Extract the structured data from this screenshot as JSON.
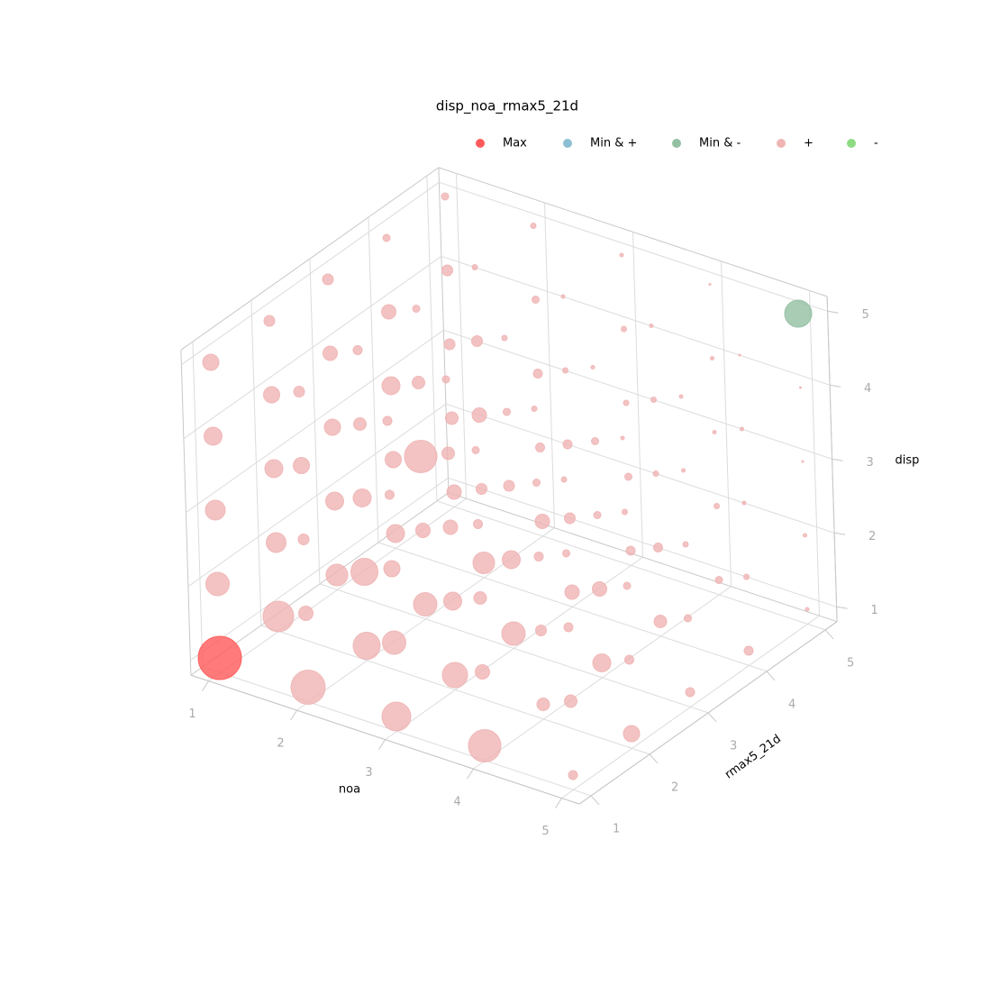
{
  "chart_data": {
    "type": "scatter3d",
    "title": "disp_noa_rmax5_21d",
    "xlabel": "noa",
    "ylabel": "rmax5_21d",
    "zlabel": "disp",
    "xlim": [
      0.8,
      5.2
    ],
    "ylim": [
      0.8,
      5.2
    ],
    "zlim": [
      0.8,
      5.2
    ],
    "xticks": [
      1,
      2,
      3,
      4,
      5
    ],
    "yticks": [
      1,
      2,
      3,
      4,
      5
    ],
    "zticks": [
      1,
      2,
      3,
      4,
      5
    ],
    "grid": true,
    "series": [
      {
        "name": "Max",
        "color": "#ff5a5a",
        "x": [
          1
        ],
        "y": [
          1
        ],
        "z": [
          1
        ],
        "sizes": [
          24
        ]
      },
      {
        "name": "Min & +",
        "color": "#8cbfd2",
        "x": [],
        "y": [],
        "z": [],
        "sizes": []
      },
      {
        "name": "Min & -",
        "color": "#93bfa3",
        "x": [
          5
        ],
        "y": [
          5
        ],
        "z": [
          5
        ],
        "sizes": [
          15
        ]
      },
      {
        "name": "+",
        "color": "#f0b4b4",
        "x": [
          1,
          1,
          1,
          1,
          2,
          2,
          2,
          2,
          2,
          3,
          3,
          3,
          3,
          3,
          4,
          4,
          4,
          4,
          4,
          5,
          5,
          5,
          5,
          5,
          1,
          1,
          1,
          1,
          1,
          2,
          2,
          2,
          2,
          2,
          3,
          3,
          3,
          3,
          3,
          4,
          4,
          4,
          4,
          4,
          5,
          5,
          5,
          5,
          5,
          1,
          1,
          1,
          1,
          1,
          2,
          2,
          2,
          2,
          2,
          3,
          3,
          3,
          3,
          3,
          4,
          4,
          4,
          4,
          4,
          5,
          5,
          5,
          5,
          5,
          1,
          1,
          1,
          1,
          1,
          2,
          2,
          2,
          2,
          2,
          3,
          3,
          3,
          3,
          3,
          4,
          4,
          4,
          4,
          4,
          5,
          5,
          5,
          5,
          5,
          1,
          1,
          1,
          1,
          1,
          2,
          2,
          2,
          2,
          2,
          3,
          3,
          3,
          3,
          3,
          4,
          4,
          4,
          4,
          4,
          5,
          5,
          5,
          5
        ],
        "y": [
          2,
          3,
          4,
          5,
          1,
          2,
          3,
          4,
          5,
          1,
          2,
          3,
          4,
          5,
          1,
          2,
          3,
          4,
          5,
          1,
          2,
          3,
          4,
          5,
          1,
          2,
          3,
          4,
          5,
          1,
          2,
          3,
          4,
          5,
          1,
          2,
          3,
          4,
          5,
          1,
          2,
          3,
          4,
          5,
          1,
          2,
          3,
          4,
          5,
          1,
          2,
          3,
          4,
          5,
          1,
          2,
          3,
          4,
          5,
          1,
          2,
          3,
          4,
          5,
          1,
          2,
          3,
          4,
          5,
          1,
          2,
          3,
          4,
          5,
          1,
          2,
          3,
          4,
          5,
          1,
          2,
          3,
          4,
          5,
          1,
          2,
          3,
          4,
          5,
          1,
          2,
          3,
          4,
          5,
          1,
          2,
          3,
          4,
          5,
          1,
          2,
          3,
          4,
          5,
          1,
          2,
          3,
          4,
          5,
          1,
          2,
          3,
          4,
          5,
          1,
          2,
          3,
          4,
          5,
          1,
          2,
          3,
          4
        ],
        "z": [
          1,
          1,
          1,
          1,
          1,
          1,
          1,
          1,
          1,
          1,
          1,
          1,
          1,
          1,
          1,
          1,
          1,
          1,
          1,
          1,
          1,
          1,
          1,
          1,
          2,
          2,
          2,
          2,
          2,
          2,
          2,
          2,
          2,
          2,
          2,
          2,
          2,
          2,
          2,
          2,
          2,
          2,
          2,
          2,
          2,
          2,
          2,
          2,
          2,
          3,
          3,
          3,
          3,
          3,
          3,
          3,
          3,
          3,
          3,
          3,
          3,
          3,
          3,
          3,
          3,
          3,
          3,
          3,
          3,
          3,
          3,
          3,
          3,
          3,
          4,
          4,
          4,
          4,
          4,
          4,
          4,
          4,
          4,
          4,
          4,
          4,
          4,
          4,
          4,
          4,
          4,
          4,
          4,
          4,
          4,
          4,
          4,
          4,
          4,
          5,
          5,
          5,
          5,
          5,
          5,
          5,
          5,
          5,
          5,
          5,
          5,
          5,
          5,
          5,
          5,
          5,
          5,
          5,
          5,
          5,
          5,
          5,
          5
        ],
        "sizes": [
          17,
          12,
          10,
          8,
          19,
          15,
          13,
          12,
          8,
          16,
          14,
          13,
          8,
          5,
          18,
          7,
          10,
          7,
          4,
          5,
          9,
          5,
          5,
          2,
          13,
          11,
          10,
          9,
          7,
          8,
          15,
          8,
          6,
          5,
          13,
          10,
          10,
          6,
          4,
          8,
          6,
          8,
          5,
          3,
          7,
          5,
          4,
          3,
          2,
          11,
          10,
          9,
          10,
          6,
          6,
          10,
          18,
          8,
          5,
          9,
          8,
          6,
          5,
          3,
          7,
          5,
          4,
          3,
          2,
          5,
          4,
          3,
          2,
          1,
          10,
          9,
          8,
          8,
          6,
          9,
          7,
          7,
          6,
          4,
          5,
          7,
          4,
          3,
          3,
          5,
          4,
          4,
          3,
          2,
          4,
          3,
          2,
          2,
          1,
          9,
          6,
          6,
          4,
          4,
          6,
          5,
          4,
          3,
          3,
          5,
          4,
          3,
          2,
          2,
          4,
          3,
          2,
          2,
          1,
          3,
          2,
          2,
          1
        ]
      },
      {
        "name": "-",
        "color": "#8ddc84",
        "x": [],
        "y": [],
        "z": [],
        "sizes": []
      }
    ]
  }
}
